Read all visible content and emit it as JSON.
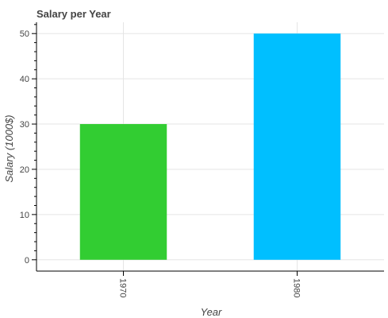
{
  "chart_data": {
    "type": "bar",
    "title": "Salary per Year",
    "xlabel": "Year",
    "ylabel": "Salary (1000$)",
    "categories": [
      "1970",
      "1980"
    ],
    "values": [
      30,
      50
    ],
    "colors": [
      "#32cd32",
      "#00bfff"
    ],
    "ylim": [
      -2.5,
      52.5
    ],
    "yticks": [
      "0",
      "10",
      "20",
      "30",
      "40",
      "50"
    ],
    "grid": true,
    "legend": "none"
  }
}
